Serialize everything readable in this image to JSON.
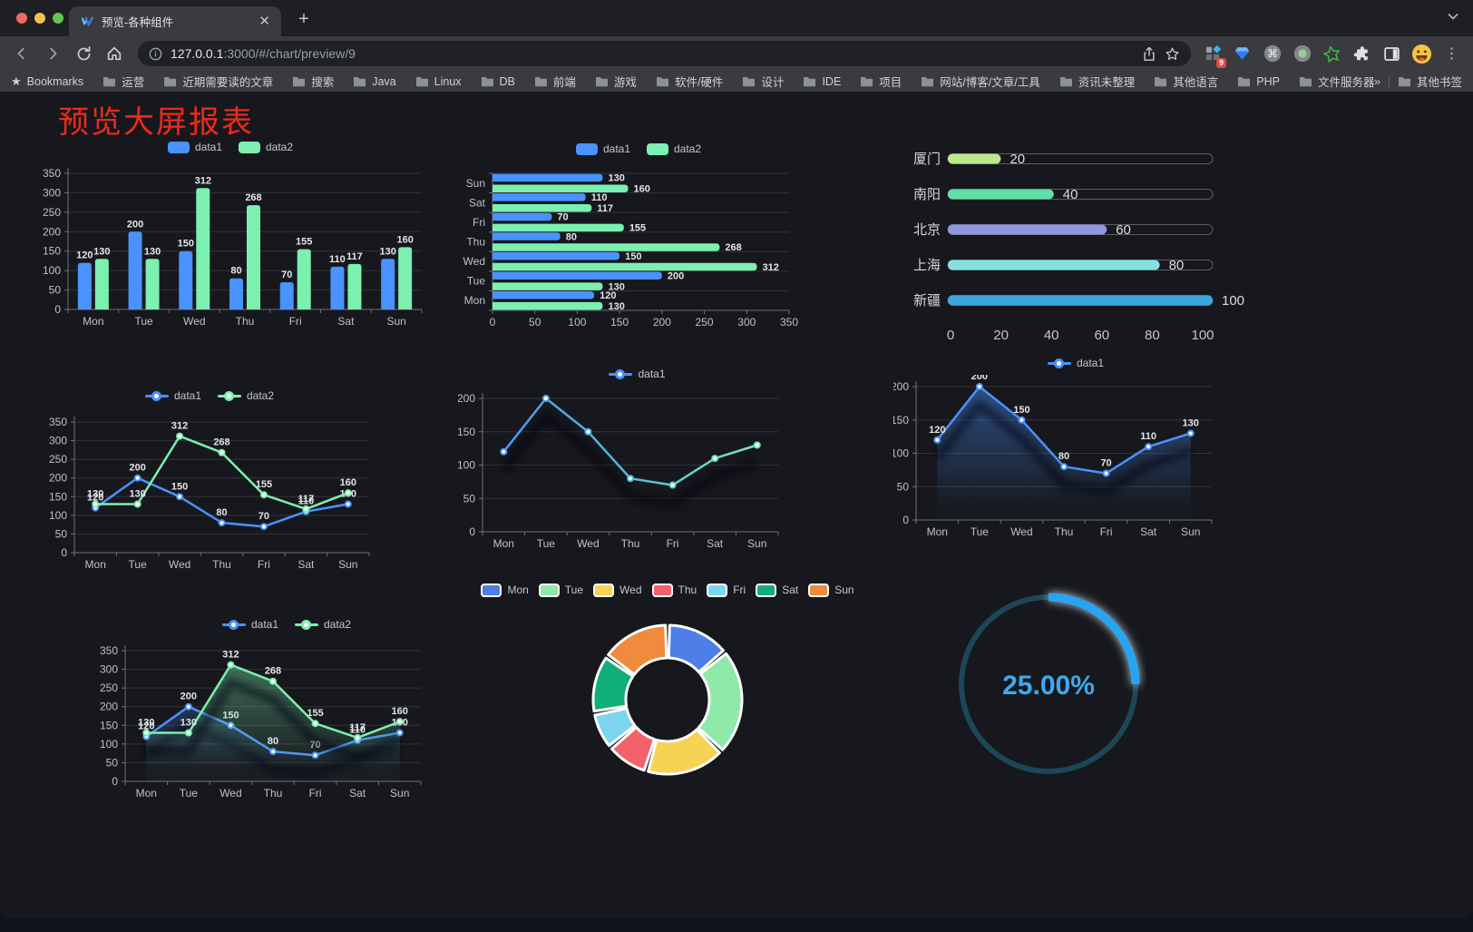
{
  "browser": {
    "tab_title": "预览-各种组件",
    "url_host": "127.0.0.1",
    "url_rest": ":3000/#/chart/preview/9",
    "extensions_badge": "9",
    "bookmarks_label": "Bookmarks",
    "bookmarks": [
      "运营",
      "近期需要读的文章",
      "搜索",
      "Java",
      "Linux",
      "DB",
      "前端",
      "游戏",
      "软件/硬件",
      "设计",
      "IDE",
      "项目",
      "网站/博客/文章/工具",
      "资讯未整理",
      "其他语言",
      "PHP",
      "文件服务器"
    ],
    "bookmarks_overflow": "»",
    "other_bookmarks": "其他书签"
  },
  "page": {
    "title": "预览大屏报表",
    "title_color": "#ee2a1b",
    "background": "#17181d"
  },
  "chart_data": [
    {
      "id": "bar-grouped",
      "type": "bar",
      "legend": "bar",
      "legend_position": "top",
      "categories": [
        "Mon",
        "Tue",
        "Wed",
        "Thu",
        "Fri",
        "Sat",
        "Sun"
      ],
      "series": [
        {
          "name": "data1",
          "color": "#4992ff",
          "values": [
            120,
            200,
            150,
            80,
            70,
            110,
            130
          ]
        },
        {
          "name": "data2",
          "color": "#7cf0b1",
          "values": [
            130,
            130,
            312,
            268,
            155,
            117,
            160
          ]
        }
      ],
      "ylim": [
        0,
        350
      ],
      "ytick": 50,
      "grid": true
    },
    {
      "id": "bar-horizontal",
      "type": "bar-horizontal",
      "legend": "bar",
      "legend_position": "top",
      "categories_top_to_bottom": [
        "Sun",
        "Sat",
        "Fri",
        "Thu",
        "Wed",
        "Tue",
        "Mon"
      ],
      "series": [
        {
          "name": "data1",
          "color": "#4992ff",
          "values_top_to_bottom": [
            130,
            110,
            70,
            80,
            150,
            200,
            120
          ]
        },
        {
          "name": "data2",
          "color": "#7cf0b1",
          "values_top_to_bottom": [
            160,
            117,
            155,
            268,
            312,
            130,
            130
          ]
        }
      ],
      "xlim": [
        0,
        350
      ],
      "xtick": 50,
      "grid": true
    },
    {
      "id": "progress",
      "type": "bar-progress",
      "legend": null,
      "items": [
        {
          "label": "厦门",
          "value": 20,
          "color": "#bce98e"
        },
        {
          "label": "南阳",
          "value": 40,
          "color": "#5ee0a6"
        },
        {
          "label": "北京",
          "value": 60,
          "color": "#9196e4"
        },
        {
          "label": "上海",
          "value": 80,
          "color": "#85e1e1"
        },
        {
          "label": "新疆",
          "value": 100,
          "color": "#39a7dc"
        }
      ],
      "xlim": [
        0,
        100
      ],
      "xticks": [
        0,
        20,
        40,
        60,
        80,
        100
      ]
    },
    {
      "id": "line-two",
      "type": "line",
      "legend": "line",
      "legend_position": "top",
      "categories": [
        "Mon",
        "Tue",
        "Wed",
        "Thu",
        "Fri",
        "Sat",
        "Sun"
      ],
      "series": [
        {
          "name": "data1",
          "color": "#4992ff",
          "values": [
            120,
            200,
            150,
            80,
            70,
            110,
            130
          ]
        },
        {
          "name": "data2",
          "color": "#7cf0b1",
          "values": [
            130,
            130,
            312,
            268,
            155,
            117,
            160
          ]
        }
      ],
      "ylim": [
        0,
        350
      ],
      "ytick": 50,
      "grid": true,
      "point_labels": true
    },
    {
      "id": "line-gradient",
      "type": "line",
      "legend": "line",
      "legend_position": "top",
      "categories": [
        "Mon",
        "Tue",
        "Wed",
        "Thu",
        "Fri",
        "Sat",
        "Sun"
      ],
      "series": [
        {
          "name": "data1",
          "color": "#4992ff",
          "color_gradient": [
            "#4992ff",
            "#55bcd8",
            "#7cf0b1"
          ],
          "values": [
            120,
            200,
            150,
            80,
            70,
            110,
            130
          ]
        }
      ],
      "ylim": [
        0,
        200
      ],
      "ytick": 50,
      "grid": true,
      "point_labels": false,
      "shadow": true
    },
    {
      "id": "line-area",
      "type": "area",
      "legend": "line",
      "legend_position": "top",
      "categories": [
        "Mon",
        "Tue",
        "Wed",
        "Thu",
        "Fri",
        "Sat",
        "Sun"
      ],
      "series": [
        {
          "name": "data1",
          "color": "#4992ff",
          "values": [
            120,
            200,
            150,
            80,
            70,
            110,
            130
          ]
        }
      ],
      "ylim": [
        0,
        200
      ],
      "ytick": 50,
      "grid": true,
      "point_labels": true,
      "shadow": true
    },
    {
      "id": "area-two",
      "type": "area",
      "legend": "line",
      "legend_position": "top",
      "categories": [
        "Mon",
        "Tue",
        "Wed",
        "Thu",
        "Fri",
        "Sat",
        "Sun"
      ],
      "series": [
        {
          "name": "data1",
          "color": "#4992ff",
          "values": [
            120,
            200,
            150,
            80,
            70,
            110,
            130
          ]
        },
        {
          "name": "data2",
          "color": "#7cf0b1",
          "values": [
            130,
            130,
            312,
            268,
            155,
            117,
            160
          ]
        }
      ],
      "ylim": [
        0,
        350
      ],
      "ytick": 50,
      "grid": true,
      "point_labels": true,
      "shadow": true
    },
    {
      "id": "donut",
      "type": "pie",
      "legend": "pie",
      "legend_position": "top",
      "items": [
        {
          "label": "Mon",
          "value": 120,
          "color": "#4e7fe9"
        },
        {
          "label": "Tue",
          "value": 200,
          "color": "#8fe9a9"
        },
        {
          "label": "Wed",
          "value": 150,
          "color": "#f7d354"
        },
        {
          "label": "Thu",
          "value": 80,
          "color": "#f2626b"
        },
        {
          "label": "Fri",
          "value": 70,
          "color": "#7cd5f1"
        },
        {
          "label": "Sat",
          "value": 110,
          "color": "#0fae77"
        },
        {
          "label": "Sun",
          "value": 130,
          "color": "#f08a3c"
        }
      ],
      "inner_radius_ratio": 0.56,
      "border_color": "#ffffff"
    },
    {
      "id": "gauge",
      "type": "gauge",
      "legend": null,
      "value": 25,
      "label": "25.00%",
      "color": "#27a6f2",
      "track_color": "#1c4757",
      "text_color": "#3fa9f1"
    }
  ]
}
